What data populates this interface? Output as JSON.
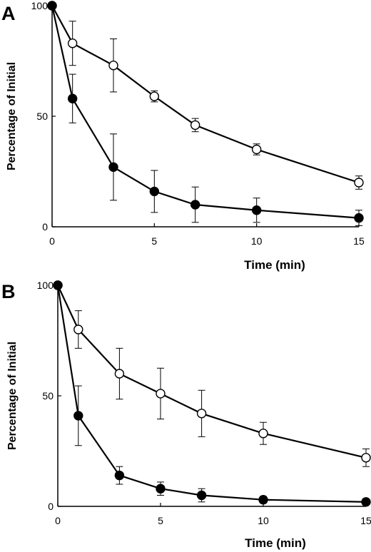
{
  "chart_data": [
    {
      "type": "line",
      "panel_label": "A",
      "xlabel": "Time (min)",
      "ylabel": "Percentage of Initial",
      "xlim": [
        0,
        15
      ],
      "ylim": [
        0,
        100
      ],
      "x_ticks": [
        "0",
        "5",
        "10",
        "15"
      ],
      "y_ticks": [
        "0",
        "50",
        "100"
      ],
      "grid": false,
      "series": [
        {
          "marker": "open-circle",
          "color": "#000000",
          "x": [
            0,
            1,
            3,
            5,
            7,
            10,
            15
          ],
          "y": [
            100,
            83,
            73,
            59,
            46,
            35,
            20
          ],
          "error": [
            0,
            10,
            12,
            2.5,
            3,
            2.5,
            3
          ]
        },
        {
          "marker": "filled-circle",
          "color": "#000000",
          "x": [
            0,
            1,
            3,
            5,
            7,
            10,
            15
          ],
          "y": [
            100,
            58,
            27,
            16,
            10,
            7.5,
            4
          ],
          "error": [
            0,
            11,
            15,
            9.5,
            8,
            5.5,
            3.5
          ]
        }
      ]
    },
    {
      "type": "line",
      "panel_label": "B",
      "xlabel": "Time (min)",
      "ylabel": "Percentage of Initial",
      "xlim": [
        0,
        15
      ],
      "ylim": [
        0,
        100
      ],
      "x_ticks": [
        "0",
        "5",
        "10",
        "15"
      ],
      "y_ticks": [
        "0",
        "50",
        "100"
      ],
      "grid": false,
      "series": [
        {
          "marker": "open-circle",
          "color": "#000000",
          "x": [
            0,
            1,
            3,
            5,
            7,
            10,
            15
          ],
          "y": [
            100,
            80,
            60,
            51,
            42,
            33,
            22
          ],
          "error": [
            0,
            8.5,
            11.5,
            11.5,
            10.5,
            5,
            4
          ]
        },
        {
          "marker": "filled-circle",
          "color": "#000000",
          "x": [
            0,
            1,
            3,
            5,
            7,
            10,
            15
          ],
          "y": [
            100,
            41,
            14,
            8,
            5,
            3,
            2
          ],
          "error": [
            0,
            13.5,
            4,
            3,
            3,
            1.5,
            0
          ]
        }
      ]
    }
  ]
}
